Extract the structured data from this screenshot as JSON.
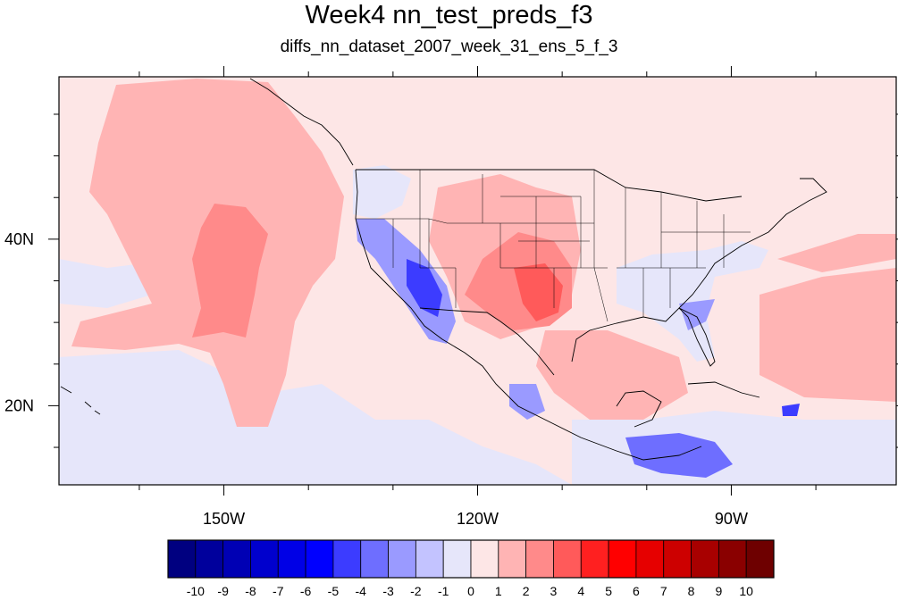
{
  "title": "Week4 nn_test_preds_f3",
  "subtitle": "diffs_nn_dataset_2007_week_31_ens_5_f_3",
  "map": {
    "lon_range": [
      -169.5,
      -70.5
    ],
    "lat_range": [
      10.5,
      59.5
    ],
    "lon_ticks": [
      {
        "lon": -150,
        "label": "150W"
      },
      {
        "lon": -120,
        "label": "120W"
      },
      {
        "lon": -90,
        "label": "90W"
      }
    ],
    "lat_ticks": [
      {
        "lat": 40,
        "label": "40N"
      },
      {
        "lat": 20,
        "label": "20N"
      }
    ],
    "field_description": "difference field",
    "colors": {
      "ocean_background": "#fde6e6",
      "coastline": "#000000"
    }
  },
  "colorbar": {
    "labels": [
      "-10",
      "-9",
      "-8",
      "-7",
      "-6",
      "-5",
      "-4",
      "-3",
      "-2",
      "-1",
      "0",
      "1",
      "2",
      "3",
      "4",
      "5",
      "6",
      "7",
      "8",
      "9",
      "10"
    ],
    "colors": [
      "#000080",
      "#00009c",
      "#0000b4",
      "#0000cd",
      "#0000e6",
      "#0000ff",
      "#3c3cff",
      "#6e6eff",
      "#9a9aff",
      "#c3c3ff",
      "#e6e6fa",
      "#fde6e6",
      "#ffb4b4",
      "#ff8a8a",
      "#ff5a5a",
      "#ff2020",
      "#ff0000",
      "#e60000",
      "#cd0000",
      "#a80000",
      "#8a0000",
      "#6e0000"
    ]
  }
}
